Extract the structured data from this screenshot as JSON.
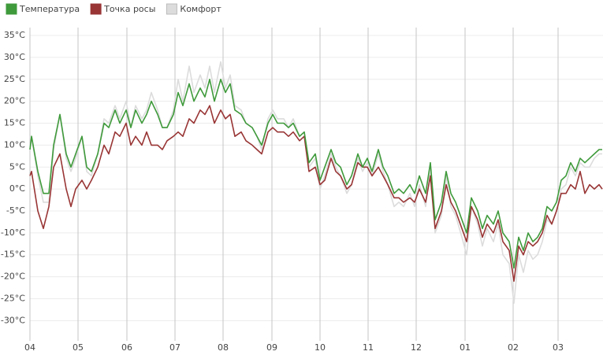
{
  "chart_data": {
    "type": "line",
    "legend": "top-left",
    "grid": true,
    "x": [
      0,
      1,
      5,
      8.5,
      12,
      15,
      19,
      23,
      26,
      29,
      33,
      36,
      39,
      43,
      47,
      50,
      54,
      57,
      61,
      64,
      67,
      71,
      74,
      77,
      81,
      84,
      87,
      91,
      94,
      97,
      101,
      104,
      108,
      111,
      114,
      117,
      121,
      124,
      127,
      130,
      134,
      137,
      141,
      144,
      147,
      151,
      154,
      157,
      161,
      164,
      167,
      171,
      174,
      177,
      181,
      184,
      187,
      191,
      194,
      197,
      201,
      204,
      208,
      211,
      214,
      217,
      221,
      224,
      227,
      231,
      234,
      237,
      241,
      244,
      247,
      251,
      254,
      257,
      261,
      264,
      267,
      270,
      274,
      277,
      280,
      284,
      287,
      290,
      294,
      297,
      300,
      304,
      307,
      310,
      313,
      316,
      319,
      322,
      325,
      328,
      331,
      334,
      337,
      340,
      343,
      346,
      349,
      352,
      355,
      358,
      361,
      363
    ],
    "xlim": [
      0,
      363.5
    ],
    "xticks": [
      {
        "value": 0,
        "label": "04"
      },
      {
        "value": 30.5,
        "label": "05"
      },
      {
        "value": 61.5,
        "label": "06"
      },
      {
        "value": 92,
        "label": "07"
      },
      {
        "value": 122.5,
        "label": "08"
      },
      {
        "value": 153.5,
        "label": "09"
      },
      {
        "value": 184,
        "label": "10"
      },
      {
        "value": 214.5,
        "label": "11"
      },
      {
        "value": 245,
        "label": "12"
      },
      {
        "value": 276,
        "label": "01"
      },
      {
        "value": 306.5,
        "label": "02"
      },
      {
        "value": 335,
        "label": "03"
      }
    ],
    "ylim": [
      -34.6,
      36.8
    ],
    "yticks": [
      {
        "value": -30,
        "label": "-30°C"
      },
      {
        "value": -25,
        "label": "-25°C"
      },
      {
        "value": -20,
        "label": "-20°C"
      },
      {
        "value": -15,
        "label": "-15°C"
      },
      {
        "value": -10,
        "label": "-10°C"
      },
      {
        "value": -5,
        "label": "-5°C"
      },
      {
        "value": 0,
        "label": "0°C"
      },
      {
        "value": 5,
        "label": "5°C"
      },
      {
        "value": 10,
        "label": "10°C"
      },
      {
        "value": 15,
        "label": "15°C"
      },
      {
        "value": 20,
        "label": "20°C"
      },
      {
        "value": 25,
        "label": "25°C"
      },
      {
        "value": 30,
        "label": "30°C"
      },
      {
        "value": 35,
        "label": "35°C"
      }
    ],
    "series": [
      {
        "name": "Температура",
        "color": "#3f9a3b",
        "values": [
          9,
          12,
          4,
          -1,
          -1,
          10,
          17,
          8,
          5,
          8,
          12,
          5,
          4,
          8,
          15,
          14,
          18,
          15,
          18,
          14,
          18,
          15,
          17,
          20,
          17,
          14,
          14,
          17,
          22,
          19,
          24,
          20,
          23,
          21,
          25,
          20,
          25,
          22,
          24,
          18,
          17,
          15,
          14,
          12,
          10,
          15,
          17,
          15,
          15,
          14,
          15,
          12,
          13,
          6,
          8,
          2,
          5,
          9,
          6,
          5,
          1,
          3,
          8,
          5,
          7,
          4,
          9,
          5,
          3,
          -1,
          0,
          -1,
          1,
          -1,
          3,
          -1,
          6,
          -7,
          -3,
          4,
          -1,
          -3,
          -7,
          -10,
          -2,
          -5,
          -9,
          -6,
          -8,
          -5,
          -10,
          -12,
          -18,
          -11,
          -14,
          -10,
          -12,
          -11,
          -9,
          -4,
          -5,
          -3,
          2,
          3,
          6,
          4,
          7,
          6,
          7,
          8,
          9,
          9
        ]
      },
      {
        "name": "Точка росы",
        "color": "#993535",
        "values": [
          3,
          4,
          -5,
          -9,
          -4,
          5,
          8,
          0,
          -4,
          0,
          2,
          0,
          2,
          5,
          10,
          8,
          13,
          12,
          15,
          10,
          12,
          10,
          13,
          10,
          10,
          9,
          11,
          12,
          13,
          12,
          16,
          15,
          18,
          17,
          19,
          15,
          18,
          16,
          17,
          12,
          13,
          11,
          10,
          9,
          8,
          13,
          14,
          13,
          13,
          12,
          13,
          11,
          12,
          4,
          5,
          1,
          2,
          7,
          4,
          3,
          0,
          1,
          6,
          5,
          5,
          3,
          5,
          3,
          1,
          -2,
          -2,
          -3,
          -2,
          -3,
          0,
          -3,
          3,
          -9,
          -5,
          1,
          -3,
          -5,
          -9,
          -12,
          -4,
          -7,
          -11,
          -8,
          -10,
          -7,
          -12,
          -14,
          -21,
          -13,
          -15,
          -12,
          -13,
          -12,
          -10,
          -6,
          -8,
          -5,
          -1,
          -1,
          1,
          0,
          4,
          -1,
          1,
          0,
          1,
          0
        ]
      },
      {
        "name": "Комфорт",
        "color": "#dcdcdc",
        "values": [
          9,
          12,
          3,
          -3,
          -3,
          9,
          17,
          7,
          4,
          7,
          12,
          4,
          3,
          8,
          16,
          15,
          19,
          16,
          20,
          14,
          19,
          16,
          18,
          22,
          18,
          14,
          14,
          18,
          25,
          20,
          28,
          22,
          26,
          23,
          28,
          22,
          29,
          23,
          26,
          19,
          18,
          15,
          14,
          12,
          9,
          16,
          18,
          16,
          16,
          14,
          16,
          12,
          13,
          5,
          7,
          0,
          3,
          8,
          5,
          3,
          -1,
          1,
          7,
          4,
          6,
          3,
          8,
          4,
          1,
          -4,
          -3,
          -4,
          -1,
          -4,
          1,
          -4,
          5,
          -10,
          -6,
          3,
          -4,
          -6,
          -11,
          -15,
          -4,
          -8,
          -13,
          -9,
          -12,
          -8,
          -15,
          -17,
          -26,
          -15,
          -19,
          -14,
          -16,
          -15,
          -12,
          -7,
          -8,
          -5,
          0,
          1,
          5,
          3,
          6,
          5,
          5,
          7,
          8,
          8
        ]
      }
    ]
  }
}
